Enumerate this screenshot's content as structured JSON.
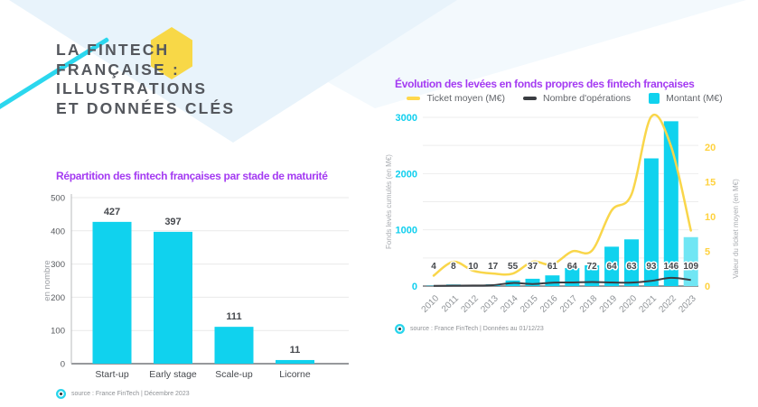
{
  "slide": {
    "title_lines": [
      "LA FINTECH",
      "FRANÇAISE :",
      "ILLUSTRATIONS",
      "ET DONNÉES CLÉS"
    ]
  },
  "colors": {
    "accent_purple": "#A43AF2",
    "cyan": "#10D2EE",
    "cyan_light": "#70E6F4",
    "yellow": "#F9D64A",
    "hexagon_yellow": "#F8D847",
    "line_dark": "#3A3D42",
    "background_blue": "#E8F3FB",
    "title_gray": "#54575D"
  },
  "left_chart": {
    "title": "Répartition des fintech françaises par stade de maturité",
    "source": "source : France FinTech | Décembre 2023"
  },
  "right_chart": {
    "title": "Évolution des levées en fonds propres des fintech françaises",
    "legend": [
      {
        "label": "Ticket moyen (M€)",
        "shape": "dash",
        "color": "#FFD84D"
      },
      {
        "label": "Nombre d'opérations",
        "shape": "dash",
        "color": "#3A3D42"
      },
      {
        "label": "Montant (M€)",
        "shape": "square",
        "color": "#10D2EE"
      }
    ],
    "source": "source : France FinTech | Données au 01/12/23"
  },
  "chart_data": [
    {
      "type": "bar",
      "title": "Répartition des fintech françaises par stade de maturité",
      "categories": [
        "Start-up",
        "Early stage",
        "Scale-up",
        "Licorne"
      ],
      "values": [
        427,
        397,
        111,
        11
      ],
      "ylabel": "en nombre",
      "xlabel": "",
      "ylim": [
        0,
        500
      ],
      "yticks": [
        0,
        100,
        200,
        300,
        400,
        500
      ],
      "bar_color": "#10D2EE",
      "grid": true,
      "legend_position": "none"
    },
    {
      "type": "combo",
      "title": "Évolution des levées en fonds propres des fintech françaises",
      "x": [
        "2010",
        "2011",
        "2012",
        "2013",
        "2014",
        "2015",
        "2016",
        "2017",
        "2018",
        "2019",
        "2020",
        "2021",
        "2022",
        "2023"
      ],
      "series": [
        {
          "name": "Montant (M€)",
          "type": "bar",
          "axis": "left",
          "color": "#10D2EE",
          "last_bar_color": "#70E6F4",
          "values": [
            6,
            28,
            22,
            31,
            100,
            130,
            190,
            320,
            370,
            700,
            830,
            2270,
            2930,
            870
          ]
        },
        {
          "name": "Nombre d'opérations",
          "type": "line",
          "axis": "left",
          "color": "#3A3D42",
          "values": [
            4,
            8,
            10,
            17,
            55,
            37,
            61,
            64,
            72,
            64,
            63,
            93,
            146,
            109
          ]
        },
        {
          "name": "Ticket moyen (M€)",
          "type": "line",
          "axis": "right",
          "color": "#F9D64A",
          "values": [
            1.5,
            3.5,
            2.2,
            1.8,
            1.8,
            3.5,
            3.1,
            5,
            5.1,
            10.9,
            13.2,
            24.4,
            20.1,
            8
          ]
        }
      ],
      "bar_labels": [
        4,
        8,
        10,
        17,
        55,
        37,
        61,
        64,
        72,
        64,
        63,
        93,
        146,
        109
      ],
      "left_axis": {
        "label": "Fonds levés cumulés (en M€)",
        "ticks": [
          0,
          1000,
          2000,
          3000
        ],
        "max": 3000
      },
      "right_axis": {
        "label": "Valeur du ticket moyen (en M€)",
        "ticks": [
          0,
          5,
          10,
          15,
          20
        ],
        "max": 24.3
      },
      "grid": true,
      "legend_position": "top"
    }
  ]
}
